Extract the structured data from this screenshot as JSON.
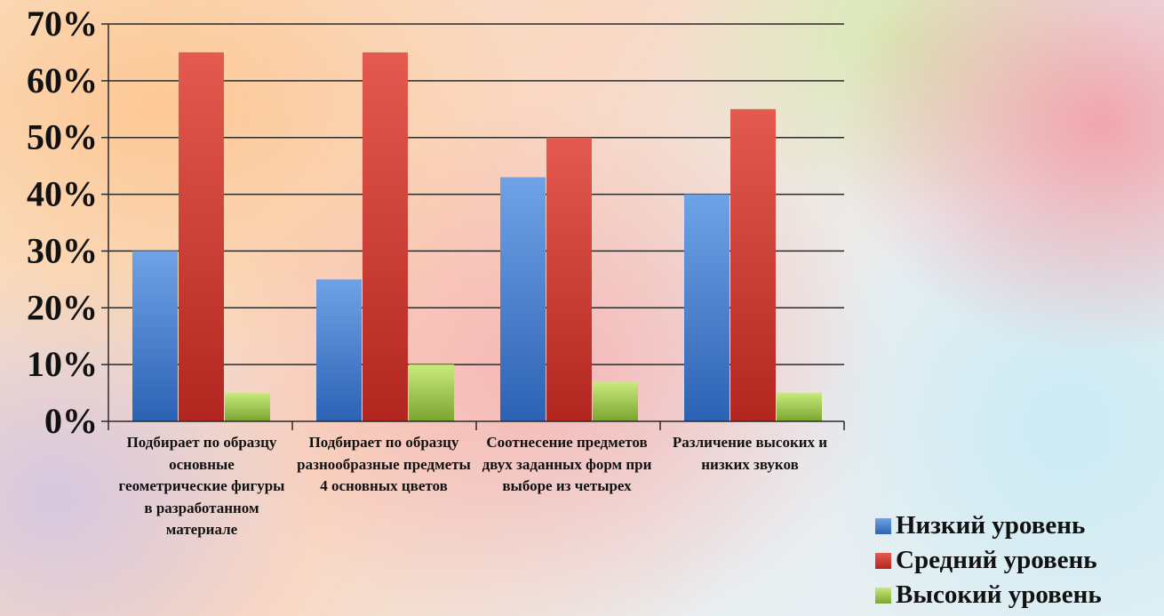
{
  "chart_data": {
    "type": "bar",
    "categories": [
      "Подбирает по образцу основные геометрические фигуры в разработанном материале",
      "Подбирает по образцу разнообразные предметы 4 основных цветов",
      "Соотнесение предметов двух заданных форм при выборе из четырех",
      "Различение высоких и низких звуков"
    ],
    "series": [
      {
        "name": "Низкий уровень",
        "values": [
          30,
          25,
          43,
          40
        ]
      },
      {
        "name": "Средний уровень",
        "values": [
          65,
          65,
          50,
          55
        ]
      },
      {
        "name": "Высокий уровень",
        "values": [
          5,
          10,
          7,
          5
        ]
      }
    ],
    "ylim": [
      0,
      70
    ],
    "yticks": [
      "0%",
      "10%",
      "20%",
      "30%",
      "40%",
      "50%",
      "60%",
      "70%"
    ],
    "grid": true,
    "legend_position": "bottom-right",
    "colors": {
      "low": [
        "#6fa2e6",
        "#2c62b4"
      ],
      "mid": [
        "#e55a4f",
        "#b2261f"
      ],
      "high": [
        "#c9ea7c",
        "#7aa530"
      ]
    }
  },
  "categories_display": [
    "Подбирает по образцу основные геометрические фигуры в разработанном материале",
    "Подбирает по образцу разнообразные предметы 4 основных цветов",
    "Соотнесение предметов двух заданных форм при выборе из четырех",
    "Различение высоких и низких звуков"
  ]
}
